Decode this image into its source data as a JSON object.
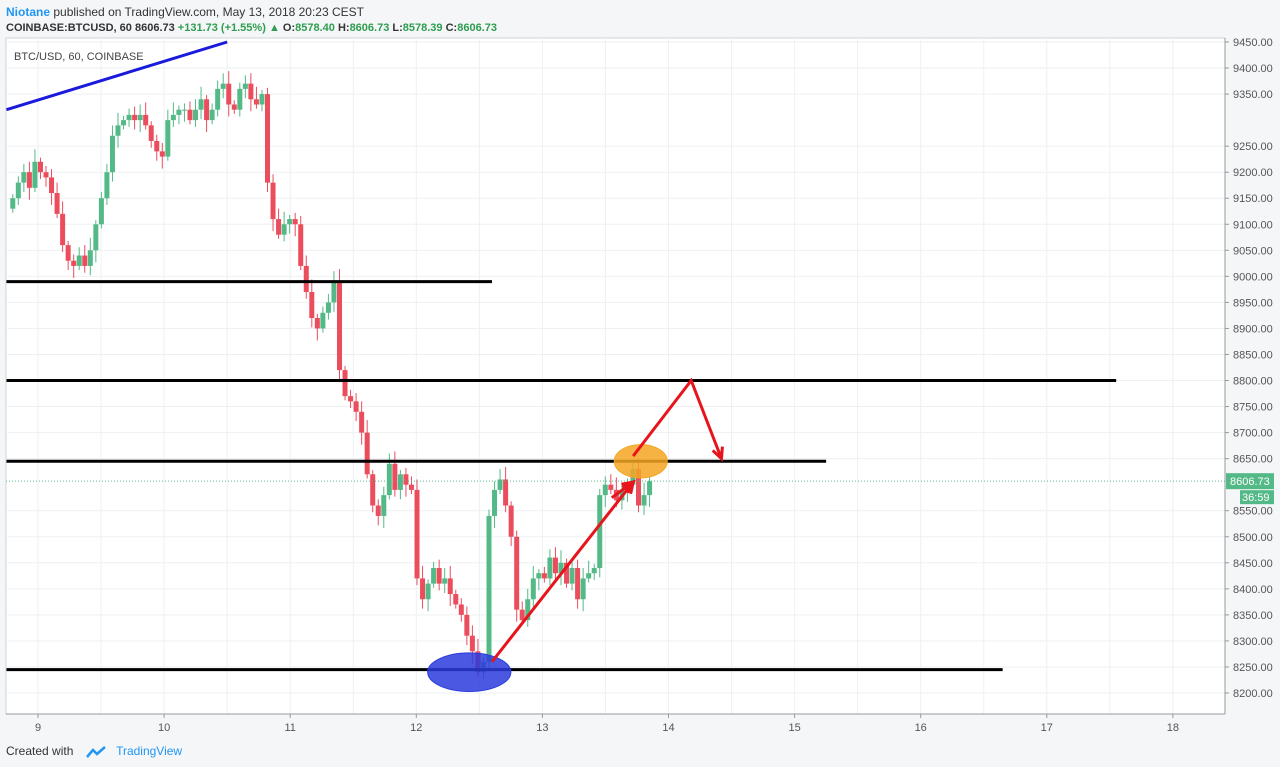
{
  "header": {
    "author": "Niotane",
    "published_text": "published on TradingView.com, May 13, 2018 20:23 CEST",
    "symbol": "COINBASE:BTCUSD, 60",
    "last": "8606.73",
    "change": "+131.73 (+1.55%)",
    "change_arrow": "▲",
    "o_label": "O:",
    "o": "8578.40",
    "h_label": "H:",
    "h": "8606.73",
    "l_label": "L:",
    "l": "8578.39",
    "c_label": "C:",
    "c": "8606.73"
  },
  "footer": {
    "created_with": "Created with",
    "brand": "TradingView"
  },
  "colors": {
    "up": "#53b987",
    "down": "#eb4d5c",
    "level_line": "#000000",
    "trend_line": "#1a1adc",
    "arrow": "#e8141c",
    "ellipse_top": "#f5a623",
    "ellipse_bottom": "#2b3bdc",
    "price_badge": "#53b987"
  },
  "chart_data": {
    "type": "candlestick",
    "legend": "BTC/USD, 60, COINBASE",
    "x_ticks": [
      "9",
      "10",
      "11",
      "12",
      "13",
      "14",
      "15",
      "16",
      "17",
      "18"
    ],
    "y_ticks": [
      "8200.00",
      "8250.00",
      "8300.00",
      "8350.00",
      "8400.00",
      "8450.00",
      "8500.00",
      "8550.00",
      "8650.00",
      "8700.00",
      "8750.00",
      "8800.00",
      "8850.00",
      "8900.00",
      "8950.00",
      "9000.00",
      "9050.00",
      "9100.00",
      "9150.00",
      "9200.00",
      "9250.00",
      "9350.00",
      "9400.00",
      "9450.00"
    ],
    "ylim": [
      8175,
      9460
    ],
    "xlim_days": [
      8.75,
      18.4
    ],
    "last_price_label": "8606.73",
    "countdown_label": "36:59",
    "horizontal_levels": [
      {
        "price": 8990,
        "x_start": 8.75,
        "x_end": 12.6
      },
      {
        "price": 8800,
        "x_start": 8.75,
        "x_end": 17.55
      },
      {
        "price": 8645,
        "x_start": 8.75,
        "x_end": 15.25
      },
      {
        "price": 8245,
        "x_start": 8.75,
        "x_end": 16.65
      }
    ],
    "trend_line": {
      "from": {
        "x": 8.75,
        "price": 9320
      },
      "to": {
        "x": 10.5,
        "price": 9450
      }
    },
    "arrows": [
      {
        "points": [
          [
            12.6,
            8260
          ],
          [
            13.72,
            8605
          ]
        ],
        "head": true
      },
      {
        "points": [
          [
            13.55,
            8575
          ],
          [
            13.72,
            8605
          ]
        ],
        "head": true
      },
      {
        "points": [
          [
            13.72,
            8655
          ],
          [
            14.18,
            8800
          ],
          [
            14.42,
            8650
          ]
        ],
        "head": true
      }
    ],
    "ellipses": [
      {
        "x": 13.78,
        "price": 8645,
        "rx_days": 0.21,
        "ry_price": 32,
        "color": "ellipse_top"
      },
      {
        "x": 12.42,
        "price": 8240,
        "rx_days": 0.33,
        "ry_price": 37,
        "color": "ellipse_bottom"
      }
    ],
    "closes": [
      9150,
      9180,
      9200,
      9170,
      9220,
      9200,
      9190,
      9160,
      9120,
      9060,
      9030,
      9020,
      9040,
      9020,
      9050,
      9100,
      9150,
      9200,
      9270,
      9290,
      9300,
      9310,
      9300,
      9310,
      9290,
      9260,
      9240,
      9230,
      9300,
      9310,
      9320,
      9320,
      9300,
      9320,
      9340,
      9300,
      9320,
      9360,
      9370,
      9330,
      9320,
      9360,
      9370,
      9340,
      9330,
      9350,
      9180,
      9110,
      9080,
      9100,
      9110,
      9100,
      9020,
      8970,
      8920,
      8900,
      8930,
      8950,
      8990,
      8820,
      8770,
      8760,
      8740,
      8700,
      8620,
      8560,
      8540,
      8580,
      8640,
      8590,
      8620,
      8600,
      8590,
      8420,
      8380,
      8410,
      8440,
      8410,
      8420,
      8390,
      8370,
      8350,
      8310,
      8280,
      8240,
      8260,
      8540,
      8590,
      8610,
      8560,
      8500,
      8360,
      8340,
      8380,
      8420,
      8430,
      8420,
      8460,
      8430,
      8450,
      8410,
      8440,
      8380,
      8420,
      8430,
      8440,
      8580,
      8600,
      8590,
      8570,
      8590,
      8600,
      8630,
      8560,
      8580,
      8606.73
    ]
  }
}
